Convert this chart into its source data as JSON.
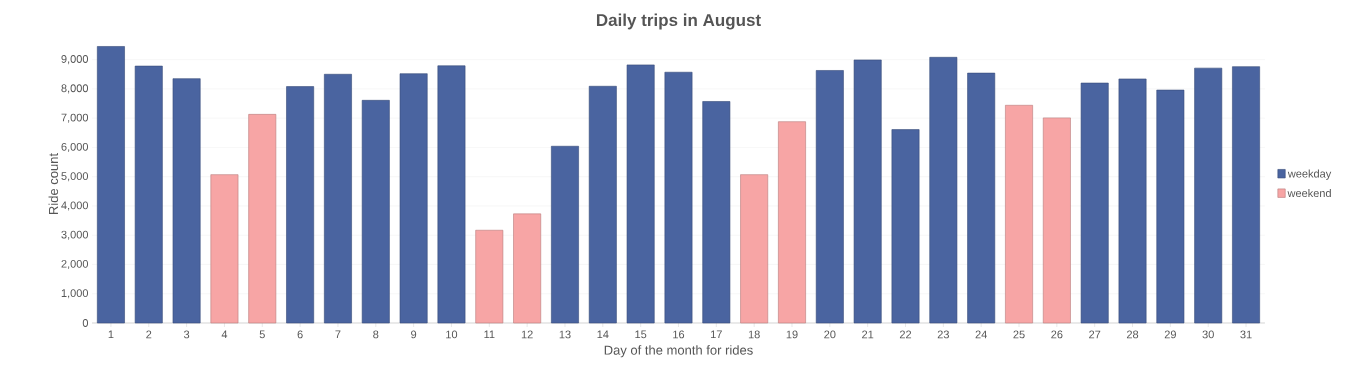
{
  "chart_data": {
    "type": "bar",
    "title": "Daily trips in August",
    "xlabel": "Day of the month for rides",
    "ylabel": "Ride count",
    "categories": [
      "1",
      "2",
      "3",
      "4",
      "5",
      "6",
      "7",
      "8",
      "9",
      "10",
      "11",
      "12",
      "13",
      "14",
      "15",
      "16",
      "17",
      "18",
      "19",
      "20",
      "21",
      "22",
      "23",
      "24",
      "25",
      "26",
      "27",
      "28",
      "29",
      "30",
      "31"
    ],
    "series": [
      {
        "name": "weekday",
        "color": "#4a64a0",
        "values": [
          9450,
          8780,
          8350,
          null,
          null,
          8080,
          8500,
          7610,
          8520,
          8790,
          null,
          null,
          6040,
          8090,
          8820,
          8570,
          7570,
          null,
          null,
          8630,
          8990,
          6610,
          9080,
          8540,
          null,
          null,
          8200,
          8340,
          7960,
          8710,
          8760
        ]
      },
      {
        "name": "weekend",
        "color": "#f7a5a5",
        "values": [
          null,
          null,
          null,
          5070,
          7130,
          null,
          null,
          null,
          null,
          null,
          3170,
          3730,
          null,
          null,
          null,
          null,
          null,
          5070,
          6880,
          null,
          null,
          null,
          null,
          null,
          7440,
          7010,
          null,
          null,
          null,
          null,
          null
        ]
      }
    ],
    "ylim": [
      0,
      9500
    ],
    "yticks": [
      {
        "value": 0,
        "label": "0"
      },
      {
        "value": 1000,
        "label": "1,000"
      },
      {
        "value": 2000,
        "label": "2,000"
      },
      {
        "value": 3000,
        "label": "3,000"
      },
      {
        "value": 4000,
        "label": "4,000"
      },
      {
        "value": 5000,
        "label": "5,000"
      },
      {
        "value": 6000,
        "label": "6,000"
      },
      {
        "value": 7000,
        "label": "7,000"
      },
      {
        "value": 8000,
        "label": "8,000"
      },
      {
        "value": 9000,
        "label": "9,000"
      }
    ],
    "grid": "y",
    "legend": "right"
  }
}
